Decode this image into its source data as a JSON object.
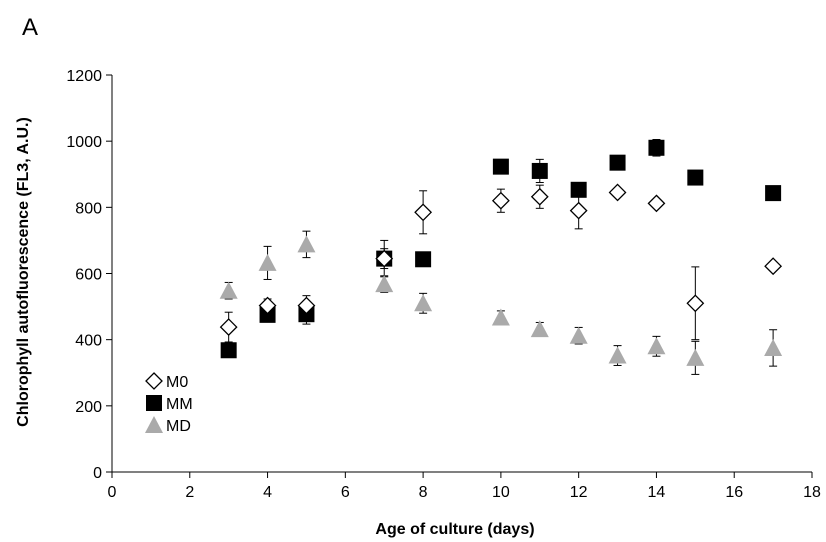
{
  "panel_label": "A",
  "chart_data": {
    "type": "scatter",
    "xlabel": "Age of culture (days)",
    "ylabel": "Chlorophyll autofluorescence (FL3, A.U.)",
    "xlim": [
      0,
      18
    ],
    "ylim": [
      0,
      1200
    ],
    "xticks": [
      0,
      2,
      4,
      6,
      8,
      10,
      12,
      14,
      16,
      18
    ],
    "yticks": [
      0,
      200,
      400,
      600,
      800,
      1000,
      1200
    ],
    "grid": false,
    "legend_position": "bottom-left",
    "series": [
      {
        "name": "M0",
        "marker": "diamond-open",
        "color": "#000000",
        "points": [
          {
            "x": 3,
            "y": 438,
            "err": 45
          },
          {
            "x": 4,
            "y": 503,
            "err": 20
          },
          {
            "x": 5,
            "y": 503,
            "err": 30
          },
          {
            "x": 7,
            "y": 645,
            "err": 30
          },
          {
            "x": 8,
            "y": 785,
            "err": 65
          },
          {
            "x": 10,
            "y": 820,
            "err": 35
          },
          {
            "x": 11,
            "y": 832,
            "err": 35
          },
          {
            "x": 12,
            "y": 790,
            "err": 55
          },
          {
            "x": 13,
            "y": 845,
            "err": 0
          },
          {
            "x": 14,
            "y": 812,
            "err": 0
          },
          {
            "x": 15,
            "y": 510,
            "err": 110
          },
          {
            "x": 17,
            "y": 622,
            "err": 0
          }
        ]
      },
      {
        "name": "MM",
        "marker": "square-filled",
        "color": "#000000",
        "points": [
          {
            "x": 3,
            "y": 368,
            "err": 0
          },
          {
            "x": 4,
            "y": 475,
            "err": 0
          },
          {
            "x": 5,
            "y": 477,
            "err": 30
          },
          {
            "x": 7,
            "y": 645,
            "err": 55
          },
          {
            "x": 8,
            "y": 643,
            "err": 0
          },
          {
            "x": 10,
            "y": 923,
            "err": 0
          },
          {
            "x": 11,
            "y": 910,
            "err": 35
          },
          {
            "x": 12,
            "y": 853,
            "err": 0
          },
          {
            "x": 13,
            "y": 935,
            "err": 0
          },
          {
            "x": 14,
            "y": 980,
            "err": 25
          },
          {
            "x": 15,
            "y": 890,
            "err": 0
          },
          {
            "x": 17,
            "y": 843,
            "err": 0
          }
        ]
      },
      {
        "name": "MD",
        "marker": "triangle-filled",
        "color": "#aaaaaa",
        "points": [
          {
            "x": 3,
            "y": 548,
            "err": 25
          },
          {
            "x": 4,
            "y": 632,
            "err": 50
          },
          {
            "x": 5,
            "y": 688,
            "err": 40
          },
          {
            "x": 7,
            "y": 568,
            "err": 25
          },
          {
            "x": 8,
            "y": 510,
            "err": 30
          },
          {
            "x": 10,
            "y": 467,
            "err": 20
          },
          {
            "x": 11,
            "y": 432,
            "err": 20
          },
          {
            "x": 12,
            "y": 412,
            "err": 25
          },
          {
            "x": 13,
            "y": 352,
            "err": 30
          },
          {
            "x": 14,
            "y": 380,
            "err": 30
          },
          {
            "x": 15,
            "y": 345,
            "err": 50
          },
          {
            "x": 17,
            "y": 375,
            "err": 55
          }
        ]
      }
    ]
  }
}
